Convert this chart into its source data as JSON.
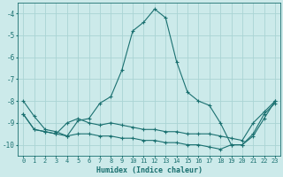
{
  "xlabel": "Humidex (Indice chaleur)",
  "background_color": "#cceaea",
  "grid_color": "#aad4d4",
  "line_color": "#1a7070",
  "xlim": [
    -0.5,
    23.5
  ],
  "ylim": [
    -10.5,
    -3.5
  ],
  "yticks": [
    -10,
    -9,
    -8,
    -7,
    -6,
    -5,
    -4
  ],
  "xticks": [
    0,
    1,
    2,
    3,
    4,
    5,
    6,
    7,
    8,
    9,
    10,
    11,
    12,
    13,
    14,
    15,
    16,
    17,
    18,
    19,
    20,
    21,
    22,
    23
  ],
  "line1_x": [
    0,
    1,
    2,
    3,
    4,
    5,
    6,
    7,
    8,
    9,
    10,
    11,
    12,
    13,
    14,
    15,
    16,
    17,
    18,
    19,
    20,
    21,
    22,
    23
  ],
  "line1_y": [
    -8.0,
    -8.7,
    -9.3,
    -9.4,
    -9.6,
    -8.9,
    -8.8,
    -8.1,
    -7.8,
    -6.6,
    -4.8,
    -4.4,
    -3.8,
    -4.2,
    -6.2,
    -7.6,
    -8.0,
    -8.2,
    -9.0,
    -10.0,
    -10.0,
    -9.6,
    -8.8,
    -8.0
  ],
  "line2_x": [
    0,
    1,
    2,
    3,
    4,
    5,
    6,
    7,
    8,
    9,
    10,
    11,
    12,
    13,
    14,
    15,
    16,
    17,
    18,
    19,
    20,
    21,
    22,
    23
  ],
  "line2_y": [
    -8.6,
    -9.3,
    -9.4,
    -9.5,
    -9.0,
    -8.8,
    -9.0,
    -9.1,
    -9.0,
    -9.1,
    -9.2,
    -9.3,
    -9.3,
    -9.4,
    -9.4,
    -9.5,
    -9.5,
    -9.5,
    -9.6,
    -9.7,
    -9.8,
    -9.0,
    -8.5,
    -8.0
  ],
  "line3_x": [
    0,
    1,
    2,
    3,
    4,
    5,
    6,
    7,
    8,
    9,
    10,
    11,
    12,
    13,
    14,
    15,
    16,
    17,
    18,
    19,
    20,
    21,
    22,
    23
  ],
  "line3_y": [
    -8.6,
    -9.3,
    -9.4,
    -9.5,
    -9.6,
    -9.5,
    -9.5,
    -9.6,
    -9.6,
    -9.7,
    -9.7,
    -9.8,
    -9.8,
    -9.9,
    -9.9,
    -10.0,
    -10.0,
    -10.1,
    -10.2,
    -10.0,
    -10.0,
    -9.5,
    -8.6,
    -8.1
  ]
}
